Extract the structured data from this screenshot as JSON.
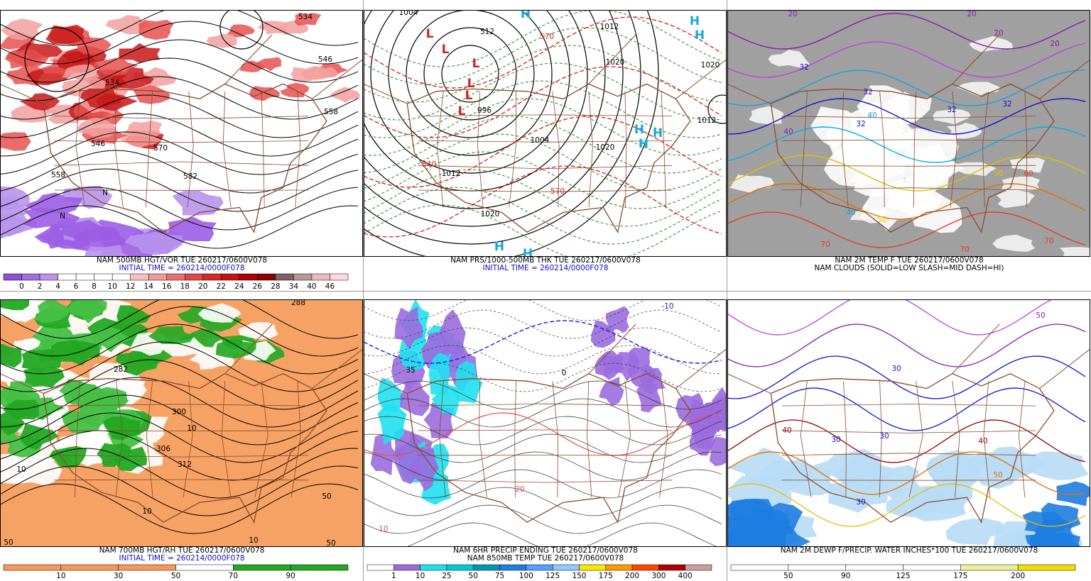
{
  "panels": [
    {
      "title": "NAM 500MB HGT/VOR TUE 260217/0600V078",
      "subtitle": "INITIAL TIME = 260214/0000F078",
      "colorbar": {
        "labels": [
          "0",
          "2",
          "4",
          "6",
          "8",
          "10",
          "12",
          "14",
          "16",
          "18",
          "20",
          "22",
          "24",
          "26",
          "28",
          "34",
          "40",
          "46"
        ],
        "colors": [
          "#8f4fd6",
          "#a070e0",
          "#b894ec",
          "#ffffff",
          "#ffffff",
          "#ffffff",
          "#ffffff",
          "#f8c0c0",
          "#f09a9a",
          "#e87070",
          "#e04848",
          "#d82828",
          "#c81010",
          "#b00000",
          "#900000",
          "#806060",
          "#b89898",
          "#f0b8c0",
          "#ffd8e0"
        ]
      },
      "map_labels": [
        "534",
        "546",
        "558",
        "570",
        "582",
        "558",
        "546",
        "534",
        "N",
        "N"
      ]
    },
    {
      "title": "NAM PRS/1000-500MB THK TUE 260217/0600V078",
      "subtitle": "INITIAL TIME = 260214/0000F078",
      "map_labels": [
        "1004",
        "1004",
        "1012",
        "1020",
        "1012",
        "1020",
        "1004",
        "1020",
        "1012",
        "1020",
        "540",
        "570",
        "570",
        "512",
        "996",
        "H",
        "H",
        "H",
        "H",
        "H",
        "H",
        "H",
        "H",
        "L",
        "L",
        "L",
        "L",
        "L",
        "L"
      ]
    },
    {
      "title": "NAM 2M TEMP F TUE 260217/0600V078",
      "subtitle": "NAM CLOUDS (SOLID=LOW SLASH=MID DASH=HI)",
      "map_labels": [
        "20",
        "20",
        "20",
        "20",
        "32",
        "32",
        "40",
        "32",
        "40",
        "50",
        "40",
        "70",
        "70",
        "70",
        "60",
        "30",
        "32",
        "32"
      ]
    },
    {
      "title": "NAM 700MB HGT/RH TUE 260217/0600V078",
      "subtitle": "INITIAL TIME = 260214/0000F078",
      "colorbar": {
        "labels": [
          "10",
          "30",
          "50",
          "70",
          "90"
        ],
        "colors": [
          "#f5985a",
          "#f5985a",
          "#f5985a",
          "#ffffff",
          "#22a822",
          "#22a822"
        ]
      },
      "map_labels": [
        "288",
        "300",
        "306",
        "312",
        "10",
        "10",
        "10",
        "50",
        "10",
        "50",
        "50",
        "282"
      ]
    },
    {
      "title": "NAM 6HR PRECIP ENDING TUE 260217/0600V078",
      "subtitle": "NAM 850MB TEMP TUE 260217/0600V078",
      "colorbar": {
        "labels": [
          "1",
          "10",
          "25",
          "50",
          "75",
          "100",
          "125",
          "150",
          "175",
          "200",
          "300",
          "400"
        ],
        "colors": [
          "#ffffff",
          "#9b6bde",
          "#20e0f0",
          "#00c8d8",
          "#0098b0",
          "#1e7de0",
          "#50a0ff",
          "#90c8ff",
          "#ffe600",
          "#ff9900",
          "#ff4500",
          "#b00000",
          "#c8a0a0"
        ]
      },
      "map_labels": [
        "35",
        "-10",
        "10",
        "20",
        "0"
      ]
    },
    {
      "title": "NAM 2M DEWP F/PRECIP. WATER INCHES*100 TUE 260217/0600V078",
      "colorbar": {
        "labels": [
          "50",
          "90",
          "125",
          "175",
          "200"
        ],
        "colors": [
          "#ffffff",
          "#ffffff",
          "#ffffff",
          "#ffffff",
          "#eef0a0",
          "#f0e000"
        ]
      },
      "map_labels": [
        "30",
        "30",
        "30",
        "40",
        "40",
        "50",
        "30",
        "50"
      ]
    }
  ]
}
